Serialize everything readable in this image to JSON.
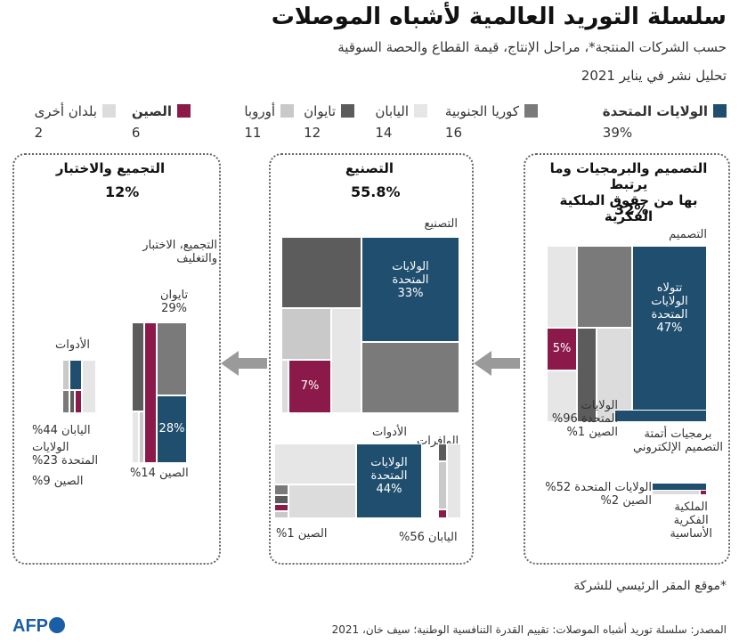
{
  "header": {
    "title": "سلسلة التوريد العالمية لأشباه الموصلات",
    "subtitle": "حسب الشركات المنتجة*، مراحل الإنتاج، قيمة القطاع والحصة السوقية",
    "published": "تحليل نشر في يناير 2021"
  },
  "colors": {
    "usa": "#1f4e6e",
    "korea": "#7a7a7a",
    "japan": "#e6e6e6",
    "taiwan": "#5c5c5c",
    "europe": "#c9c9c9",
    "china": "#8b1a4a",
    "other": "#dcdcdc"
  },
  "legend": [
    {
      "label": "الولايات المتحدة",
      "pct": "39%",
      "color": "#1f4e6e",
      "bold": true
    },
    {
      "label": "كوريا الجنوبية",
      "pct": "16",
      "color": "#7a7a7a"
    },
    {
      "label": "اليابان",
      "pct": "14",
      "color": "#e6e6e6"
    },
    {
      "label": "تايوان",
      "pct": "12",
      "color": "#5c5c5c"
    },
    {
      "label": "أوروبا",
      "pct": "11",
      "color": "#c9c9c9"
    },
    {
      "label": "الصين",
      "pct": "6",
      "color": "#8b1a4a",
      "bold": true
    },
    {
      "label": "بلدان أخرى",
      "pct": "2",
      "color": "#dcdcdc"
    }
  ],
  "sections": {
    "design": {
      "title_line1": "التصميم والبرمجيات وما يرتبط",
      "title_line2": "بها من حقوق الملكية الفكرية",
      "pct": "32%",
      "design_label": "التصميم",
      "usa_label_1": "تتولاه",
      "usa_label_2": "الولايات",
      "usa_label_3": "المتحدة",
      "usa_pct": "47%",
      "china_pct": "5%",
      "eda_usa_1": "الولايات",
      "eda_usa_2": "المتحدة 96%",
      "eda_china": "الصين 1%",
      "eda_label_1": "برمجيات أتمتة",
      "eda_label_2": "التصميم الإلكتروني",
      "ip_usa": "الولايات المتحدة 52%",
      "ip_china": "الصين 2%",
      "ip_label_1": "الملكية",
      "ip_label_2": "الفكرية",
      "ip_label_3": "الأساسية"
    },
    "manufacturing": {
      "title": "التصنيع",
      "pct": "55.8%",
      "fab_label": "التصنيع",
      "usa_label_1": "الولايات",
      "usa_label_2": "المتحدة",
      "usa_pct": "33%",
      "china_pct": "7%",
      "materials_label": "الوافرات",
      "tools_label": "الأدوات",
      "tools_usa_1": "الولايات",
      "tools_usa_2": "المتحدة",
      "tools_usa_pct": "44%",
      "tools_china": "الصين 1%",
      "materials_japan": "اليابان 56%"
    },
    "assembly": {
      "title": "التجميع والاختبار",
      "pct": "12%",
      "atp_label_1": "التجميع، الاختبار",
      "atp_label_2": "والتغليف",
      "taiwan_1": "تايوان",
      "taiwan_2": "29%",
      "china_pct": "28%",
      "china_label": "الصين 14%",
      "tools_label": "الأدوات",
      "tools_japan": "اليابان 44%",
      "tools_usa_1": "الولايات",
      "tools_usa_2": "المتحدة 23%",
      "tools_china": "الصين 9%"
    }
  },
  "footnote": "*موقع المقر الرئيسي للشركة",
  "source": "المصدر: سلسلة توريد أشباه الموصلات: تقييم القدرة التنافسية الوطنية؛ سيف خان، 2021",
  "logo": "AFP",
  "chart_data": {
    "type": "treemap",
    "title": "سلسلة التوريد العالمية لأشباه الموصلات",
    "overall_share": [
      {
        "name": "الولايات المتحدة",
        "value": 39
      },
      {
        "name": "كوريا الجنوبية",
        "value": 16
      },
      {
        "name": "اليابان",
        "value": 14
      },
      {
        "name": "تايوان",
        "value": 12
      },
      {
        "name": "أوروبا",
        "value": 11
      },
      {
        "name": "الصين",
        "value": 6
      },
      {
        "name": "بلدان أخرى",
        "value": 2
      }
    ],
    "stages": [
      {
        "name": "التصميم والبرمجيات وما يرتبط بها من حقوق الملكية الفكرية",
        "value": 32,
        "parts": [
          {
            "name": "التصميم",
            "usa": 47,
            "china": 5
          },
          {
            "name": "برمجيات أتمتة التصميم الإلكتروني",
            "usa": 96,
            "china": 1
          },
          {
            "name": "الملكية الفكرية الأساسية",
            "usa": 52,
            "china": 2
          }
        ]
      },
      {
        "name": "التصنيع",
        "value": 55.8,
        "parts": [
          {
            "name": "التصنيع",
            "usa": 33,
            "china": 7
          },
          {
            "name": "الأدوات",
            "usa": 44,
            "china": 1
          },
          {
            "name": "الوافرات",
            "japan": 56
          }
        ]
      },
      {
        "name": "التجميع والاختبار",
        "value": 12,
        "parts": [
          {
            "name": "التجميع، الاختبار والتغليف",
            "taiwan": 29,
            "china": 28
          },
          {
            "name": "الأدوات",
            "japan": 44,
            "usa": 23,
            "china": 9
          }
        ]
      }
    ]
  }
}
